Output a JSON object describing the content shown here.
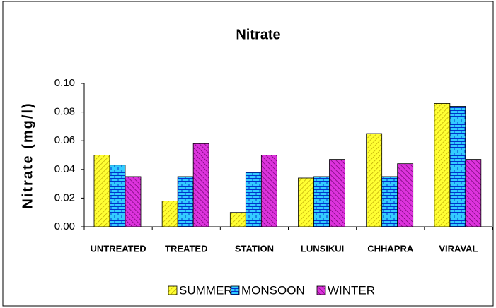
{
  "chart_data": {
    "type": "bar",
    "title": "Nitrate",
    "y_label": "Nitrate (mg/l)",
    "categories": [
      "UNTREATED",
      "TREATED",
      "STATION",
      "LUNSIKUI",
      "CHHAPRA",
      "VIRAVAL"
    ],
    "series": [
      {
        "name": "SUMMER",
        "color": "#ffff33",
        "values": [
          0.05,
          0.018,
          0.01,
          0.034,
          0.065,
          0.086
        ]
      },
      {
        "name": "MONSOON",
        "color": "#33ccff",
        "values": [
          0.043,
          0.035,
          0.038,
          0.035,
          0.035,
          0.084
        ]
      },
      {
        "name": "WINTER",
        "color": "#dd33dd",
        "values": [
          0.035,
          0.058,
          0.05,
          0.047,
          0.044,
          0.047
        ]
      }
    ],
    "ylim": [
      0,
      0.1
    ],
    "yticks": [
      {
        "value": 0,
        "label": "0.00"
      },
      {
        "value": 0.02,
        "label": "0.02"
      },
      {
        "value": 0.04,
        "label": "0.04"
      },
      {
        "value": 0.06,
        "label": "0.06"
      },
      {
        "value": 0.08,
        "label": "0.08"
      },
      {
        "value": 0.1,
        "label": "0.10"
      }
    ],
    "legend": "bottom"
  }
}
